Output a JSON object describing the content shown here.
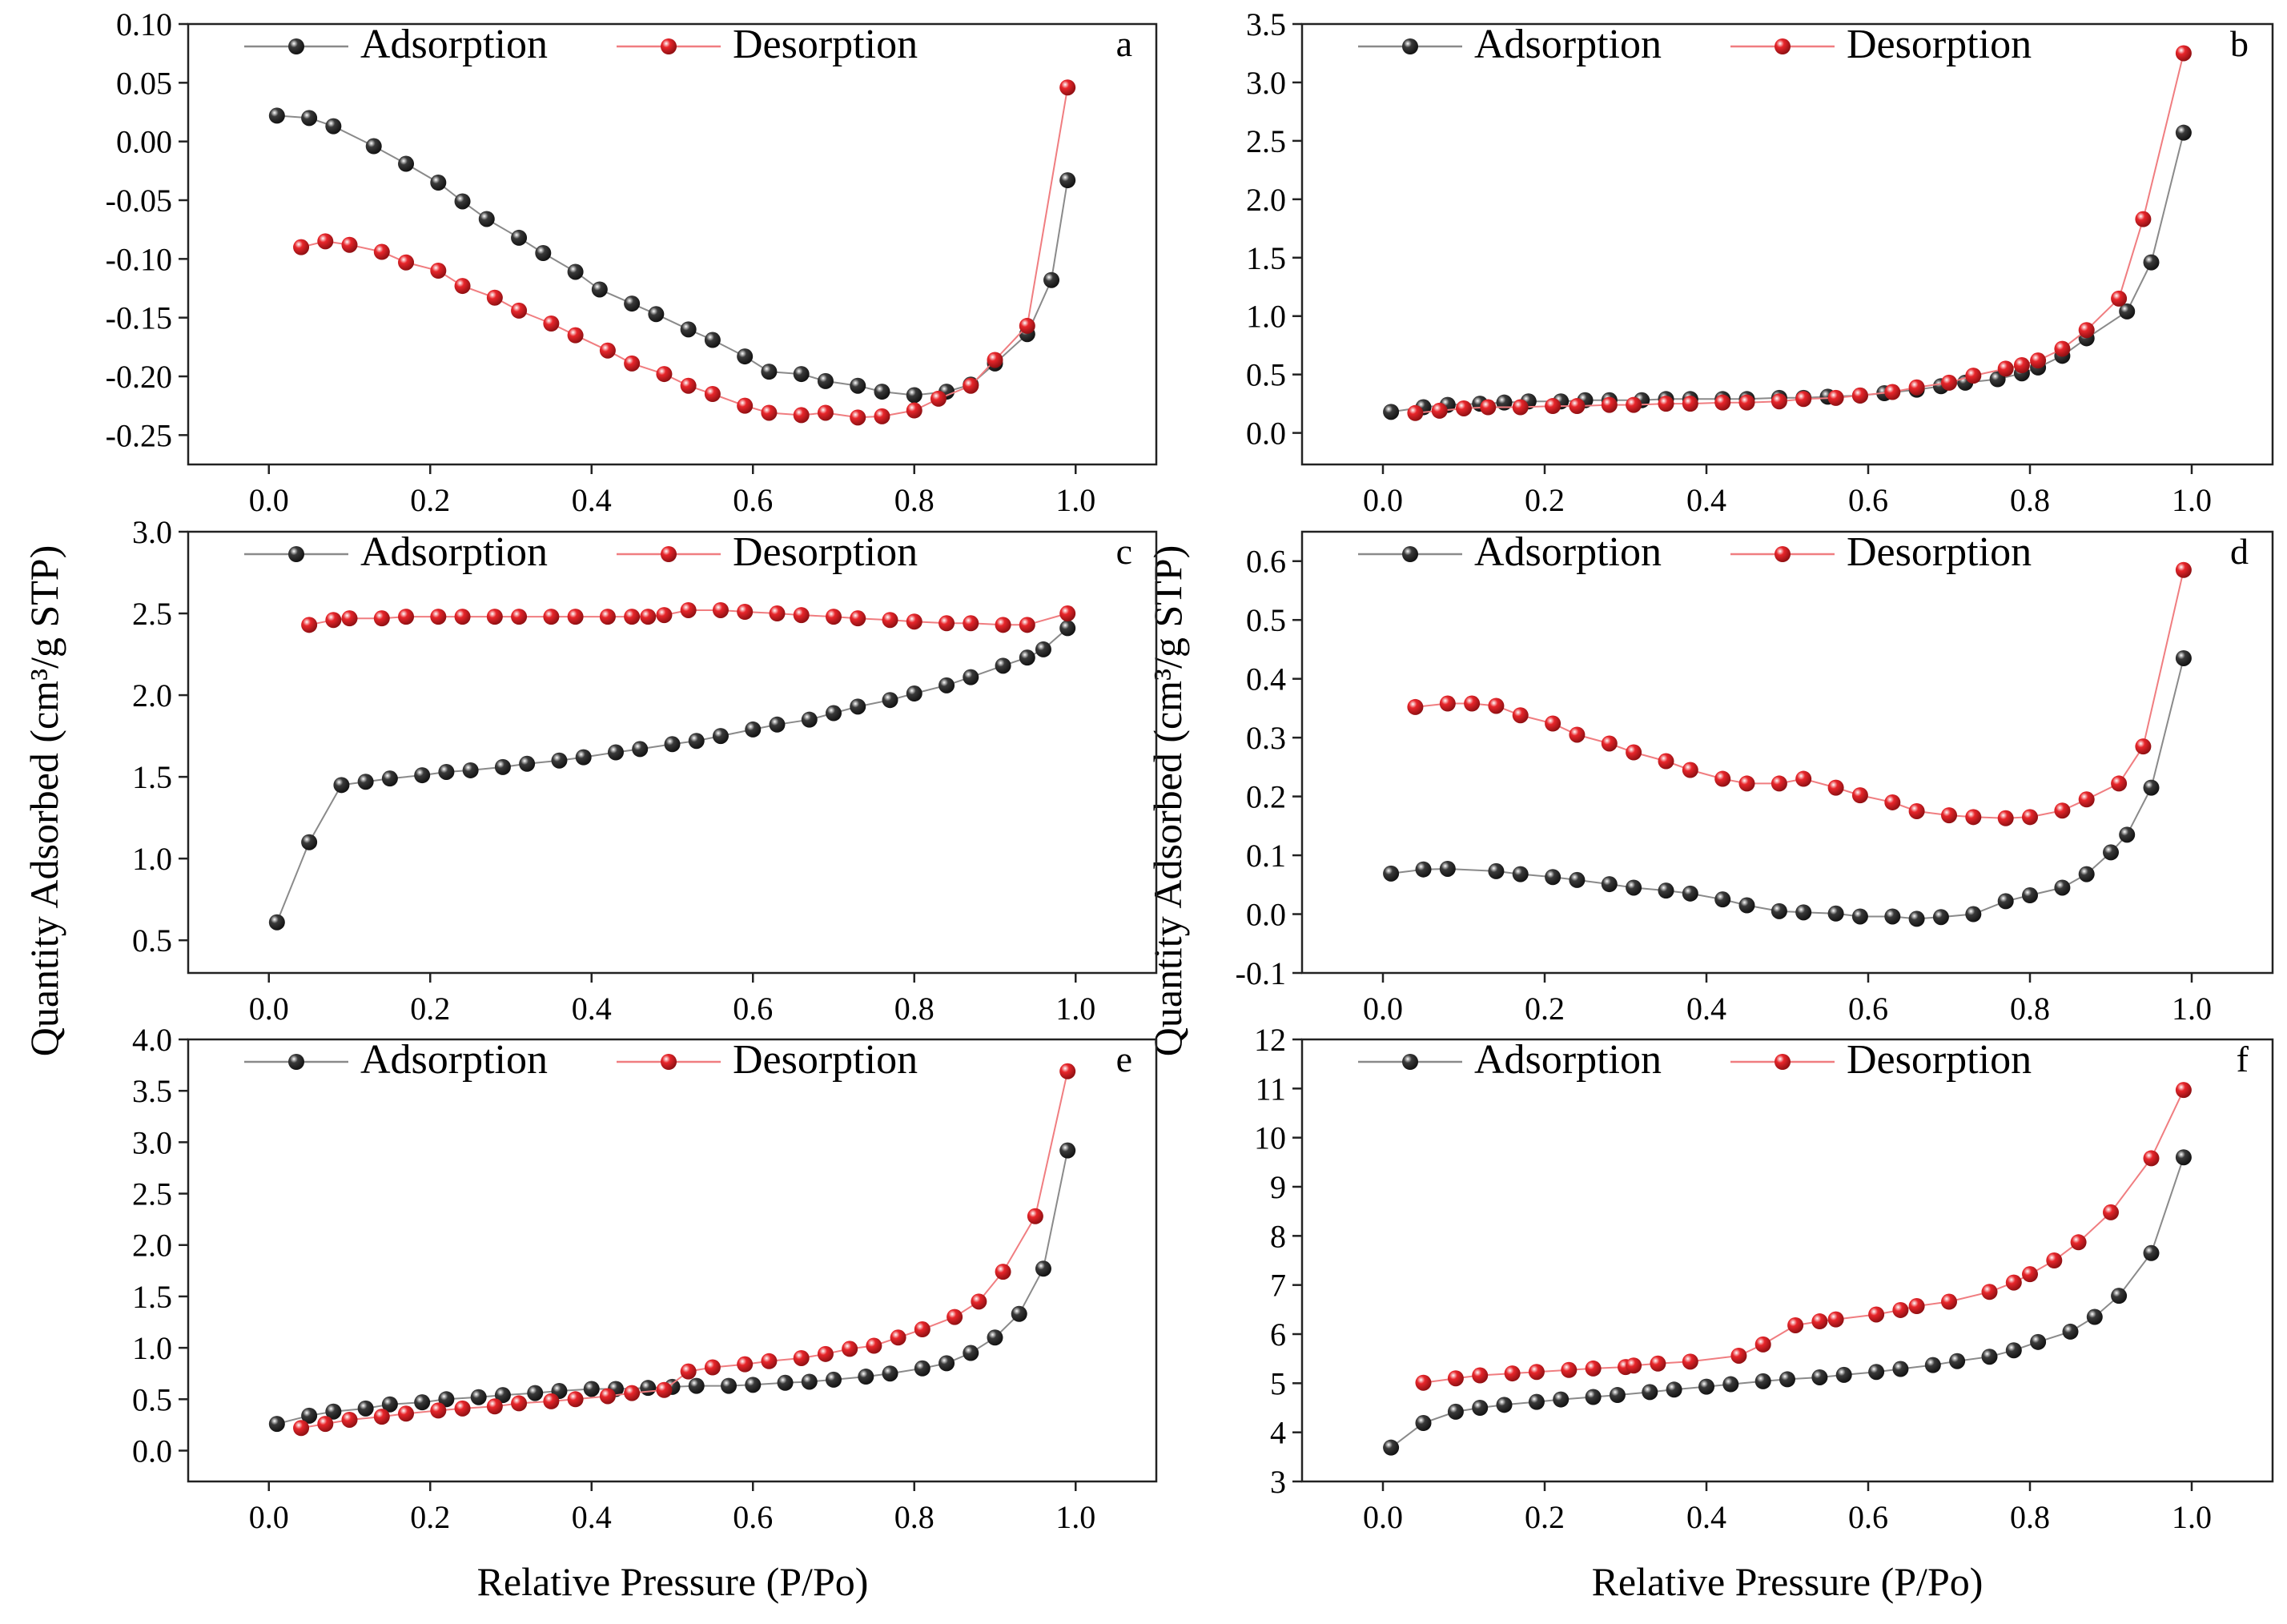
{
  "figure": {
    "ylabel": "Quantity Adsorbed (cm³/g STP)",
    "xlabel": "Relative Pressure (P/Po)"
  },
  "series_style": {
    "adsorption_color": "#3a3a3a",
    "desorption_color": "#e8262b"
  },
  "chart_data": [
    {
      "type": "line",
      "panel_label": "a",
      "xlim": [
        -0.1,
        1.1
      ],
      "ylim": [
        -0.275,
        0.1
      ],
      "xticks": [
        "0.0",
        "0.2",
        "0.4",
        "0.6",
        "0.8",
        "1.0"
      ],
      "yticks": [
        "0.10",
        "0.05",
        "0.00",
        "-0.05",
        "-0.10",
        "-0.15",
        "-0.20",
        "-0.25"
      ],
      "series": [
        {
          "name": "Adsorption",
          "x": [
            0.01,
            0.05,
            0.08,
            0.13,
            0.17,
            0.21,
            0.24,
            0.27,
            0.31,
            0.34,
            0.38,
            0.41,
            0.45,
            0.48,
            0.52,
            0.55,
            0.59,
            0.62,
            0.66,
            0.69,
            0.73,
            0.76,
            0.8,
            0.84,
            0.87,
            0.9,
            0.94,
            0.97,
            0.99
          ],
          "y": [
            0.022,
            0.02,
            0.013,
            -0.004,
            -0.019,
            -0.035,
            -0.051,
            -0.066,
            -0.082,
            -0.095,
            -0.111,
            -0.126,
            -0.138,
            -0.147,
            -0.16,
            -0.169,
            -0.183,
            -0.196,
            -0.198,
            -0.204,
            -0.208,
            -0.213,
            -0.216,
            -0.213,
            -0.207,
            -0.189,
            -0.164,
            -0.118,
            -0.033
          ]
        },
        {
          "name": "Desorption",
          "x": [
            0.04,
            0.07,
            0.1,
            0.14,
            0.17,
            0.21,
            0.24,
            0.28,
            0.31,
            0.35,
            0.38,
            0.42,
            0.45,
            0.49,
            0.52,
            0.55,
            0.59,
            0.62,
            0.66,
            0.69,
            0.73,
            0.76,
            0.8,
            0.83,
            0.87,
            0.9,
            0.94,
            0.99
          ],
          "y": [
            -0.09,
            -0.085,
            -0.088,
            -0.094,
            -0.103,
            -0.11,
            -0.123,
            -0.133,
            -0.144,
            -0.155,
            -0.165,
            -0.178,
            -0.189,
            -0.198,
            -0.208,
            -0.215,
            -0.225,
            -0.231,
            -0.233,
            -0.231,
            -0.235,
            -0.234,
            -0.229,
            -0.219,
            -0.208,
            -0.186,
            -0.157,
            0.046
          ]
        }
      ]
    },
    {
      "type": "line",
      "panel_label": "b",
      "xlim": [
        -0.1,
        1.1
      ],
      "ylim": [
        -0.27,
        3.5
      ],
      "xticks": [
        "0.0",
        "0.2",
        "0.4",
        "0.6",
        "0.8",
        "1.0"
      ],
      "yticks": [
        "3.5",
        "3.0",
        "2.5",
        "2.0",
        "1.5",
        "1.0",
        "0.5",
        "0.0"
      ],
      "series": [
        {
          "name": "Adsorption",
          "x": [
            0.01,
            0.05,
            0.08,
            0.12,
            0.15,
            0.18,
            0.22,
            0.25,
            0.28,
            0.32,
            0.35,
            0.38,
            0.42,
            0.45,
            0.49,
            0.52,
            0.55,
            0.59,
            0.62,
            0.66,
            0.69,
            0.72,
            0.76,
            0.79,
            0.81,
            0.84,
            0.87,
            0.92,
            0.95,
            0.99
          ],
          "y": [
            0.18,
            0.22,
            0.24,
            0.25,
            0.26,
            0.27,
            0.27,
            0.28,
            0.28,
            0.28,
            0.29,
            0.29,
            0.29,
            0.29,
            0.3,
            0.3,
            0.31,
            0.32,
            0.34,
            0.37,
            0.4,
            0.43,
            0.46,
            0.51,
            0.56,
            0.66,
            0.81,
            1.04,
            1.46,
            2.57
          ]
        },
        {
          "name": "Desorption",
          "x": [
            0.04,
            0.07,
            0.1,
            0.13,
            0.17,
            0.21,
            0.24,
            0.28,
            0.31,
            0.35,
            0.38,
            0.42,
            0.45,
            0.49,
            0.52,
            0.56,
            0.59,
            0.63,
            0.66,
            0.7,
            0.73,
            0.77,
            0.79,
            0.81,
            0.84,
            0.87,
            0.91,
            0.94,
            0.99
          ],
          "y": [
            0.17,
            0.19,
            0.21,
            0.22,
            0.22,
            0.23,
            0.23,
            0.24,
            0.24,
            0.25,
            0.25,
            0.26,
            0.26,
            0.27,
            0.29,
            0.3,
            0.32,
            0.35,
            0.39,
            0.43,
            0.49,
            0.55,
            0.58,
            0.62,
            0.72,
            0.88,
            1.15,
            1.83,
            3.25
          ]
        }
      ]
    },
    {
      "type": "line",
      "panel_label": "c",
      "xlim": [
        -0.1,
        1.1
      ],
      "ylim": [
        0.3,
        3.0
      ],
      "xticks": [
        "0.0",
        "0.2",
        "0.4",
        "0.6",
        "0.8",
        "1.0"
      ],
      "yticks": [
        "3.0",
        "2.5",
        "2.0",
        "1.5",
        "1.0",
        "0.5"
      ],
      "series": [
        {
          "name": "Adsorption",
          "x": [
            0.01,
            0.05,
            0.09,
            0.12,
            0.15,
            0.19,
            0.22,
            0.25,
            0.29,
            0.32,
            0.36,
            0.39,
            0.43,
            0.46,
            0.5,
            0.53,
            0.56,
            0.6,
            0.63,
            0.67,
            0.7,
            0.73,
            0.77,
            0.8,
            0.84,
            0.87,
            0.91,
            0.94,
            0.96,
            0.99
          ],
          "y": [
            0.61,
            1.1,
            1.45,
            1.47,
            1.49,
            1.51,
            1.53,
            1.54,
            1.56,
            1.58,
            1.6,
            1.62,
            1.65,
            1.67,
            1.7,
            1.72,
            1.75,
            1.79,
            1.82,
            1.85,
            1.89,
            1.93,
            1.97,
            2.01,
            2.06,
            2.11,
            2.18,
            2.23,
            2.28,
            2.41
          ]
        },
        {
          "name": "Desorption",
          "x": [
            0.05,
            0.08,
            0.1,
            0.14,
            0.17,
            0.21,
            0.24,
            0.28,
            0.31,
            0.35,
            0.38,
            0.42,
            0.45,
            0.47,
            0.49,
            0.52,
            0.56,
            0.59,
            0.63,
            0.66,
            0.7,
            0.73,
            0.77,
            0.8,
            0.84,
            0.87,
            0.91,
            0.94,
            0.99
          ],
          "y": [
            2.43,
            2.46,
            2.47,
            2.47,
            2.48,
            2.48,
            2.48,
            2.48,
            2.48,
            2.48,
            2.48,
            2.48,
            2.48,
            2.48,
            2.49,
            2.52,
            2.52,
            2.51,
            2.5,
            2.49,
            2.48,
            2.47,
            2.46,
            2.45,
            2.44,
            2.44,
            2.43,
            2.43,
            2.5
          ]
        }
      ]
    },
    {
      "type": "line",
      "panel_label": "d",
      "xlim": [
        -0.1,
        1.1
      ],
      "ylim": [
        -0.1,
        0.65
      ],
      "xticks": [
        "0.0",
        "0.2",
        "0.4",
        "0.6",
        "0.8",
        "1.0"
      ],
      "yticks": [
        "0.6",
        "0.5",
        "0.4",
        "0.3",
        "0.2",
        "0.1",
        "0.0",
        "-0.1"
      ],
      "series": [
        {
          "name": "Adsorption",
          "x": [
            0.01,
            0.05,
            0.08,
            0.14,
            0.17,
            0.21,
            0.24,
            0.28,
            0.31,
            0.35,
            0.38,
            0.42,
            0.45,
            0.49,
            0.52,
            0.56,
            0.59,
            0.63,
            0.66,
            0.69,
            0.73,
            0.77,
            0.8,
            0.84,
            0.87,
            0.9,
            0.92,
            0.95,
            0.99
          ],
          "y": [
            0.069,
            0.076,
            0.077,
            0.073,
            0.068,
            0.063,
            0.058,
            0.051,
            0.045,
            0.04,
            0.035,
            0.025,
            0.015,
            0.005,
            0.003,
            0.001,
            -0.004,
            -0.004,
            -0.008,
            -0.005,
            0.0,
            0.022,
            0.032,
            0.045,
            0.068,
            0.105,
            0.135,
            0.215,
            0.435
          ]
        },
        {
          "name": "Desorption",
          "x": [
            0.04,
            0.08,
            0.11,
            0.14,
            0.17,
            0.21,
            0.24,
            0.28,
            0.31,
            0.35,
            0.38,
            0.42,
            0.45,
            0.49,
            0.52,
            0.56,
            0.59,
            0.63,
            0.66,
            0.7,
            0.73,
            0.77,
            0.8,
            0.84,
            0.87,
            0.91,
            0.94,
            0.99
          ],
          "y": [
            0.352,
            0.358,
            0.358,
            0.354,
            0.338,
            0.324,
            0.305,
            0.29,
            0.275,
            0.26,
            0.245,
            0.23,
            0.222,
            0.222,
            0.23,
            0.215,
            0.202,
            0.19,
            0.175,
            0.168,
            0.165,
            0.163,
            0.165,
            0.176,
            0.195,
            0.222,
            0.285,
            0.585
          ]
        }
      ]
    },
    {
      "type": "line",
      "panel_label": "e",
      "xlim": [
        -0.1,
        1.1
      ],
      "ylim": [
        -0.3,
        4.0
      ],
      "xticks": [
        "0.0",
        "0.2",
        "0.4",
        "0.6",
        "0.8",
        "1.0"
      ],
      "yticks": [
        "4.0",
        "3.5",
        "3.0",
        "2.5",
        "2.0",
        "1.5",
        "1.0",
        "0.5",
        "0.0"
      ],
      "series": [
        {
          "name": "Adsorption",
          "x": [
            0.01,
            0.05,
            0.08,
            0.12,
            0.15,
            0.19,
            0.22,
            0.26,
            0.29,
            0.33,
            0.36,
            0.4,
            0.43,
            0.47,
            0.5,
            0.53,
            0.57,
            0.6,
            0.64,
            0.67,
            0.7,
            0.74,
            0.77,
            0.81,
            0.84,
            0.87,
            0.9,
            0.93,
            0.96,
            0.99
          ],
          "y": [
            0.26,
            0.34,
            0.38,
            0.41,
            0.45,
            0.47,
            0.5,
            0.52,
            0.54,
            0.56,
            0.58,
            0.6,
            0.6,
            0.61,
            0.62,
            0.63,
            0.63,
            0.64,
            0.66,
            0.67,
            0.69,
            0.72,
            0.75,
            0.8,
            0.85,
            0.95,
            1.1,
            1.33,
            1.77,
            2.92
          ]
        },
        {
          "name": "Desorption",
          "x": [
            0.04,
            0.07,
            0.1,
            0.14,
            0.17,
            0.21,
            0.24,
            0.28,
            0.31,
            0.35,
            0.38,
            0.42,
            0.45,
            0.49,
            0.52,
            0.55,
            0.59,
            0.62,
            0.66,
            0.69,
            0.72,
            0.75,
            0.78,
            0.81,
            0.85,
            0.88,
            0.91,
            0.95,
            0.99
          ],
          "y": [
            0.22,
            0.26,
            0.3,
            0.33,
            0.36,
            0.39,
            0.41,
            0.43,
            0.46,
            0.48,
            0.5,
            0.53,
            0.56,
            0.59,
            0.77,
            0.81,
            0.84,
            0.87,
            0.9,
            0.94,
            0.99,
            1.02,
            1.1,
            1.18,
            1.3,
            1.45,
            1.74,
            2.28,
            3.69
          ]
        }
      ]
    },
    {
      "type": "line",
      "panel_label": "f",
      "xlim": [
        -0.1,
        1.1
      ],
      "ylim": [
        3.0,
        12.0
      ],
      "xticks": [
        "0.0",
        "0.2",
        "0.4",
        "0.6",
        "0.8",
        "1.0"
      ],
      "yticks": [
        "12",
        "11",
        "10",
        "9",
        "8",
        "7",
        "6",
        "5",
        "4",
        "3"
      ],
      "series": [
        {
          "name": "Adsorption",
          "x": [
            0.01,
            0.05,
            0.09,
            0.12,
            0.15,
            0.19,
            0.22,
            0.26,
            0.29,
            0.33,
            0.36,
            0.4,
            0.43,
            0.47,
            0.5,
            0.54,
            0.57,
            0.61,
            0.64,
            0.68,
            0.71,
            0.75,
            0.78,
            0.81,
            0.85,
            0.88,
            0.91,
            0.95,
            0.99
          ],
          "y": [
            3.69,
            4.19,
            4.42,
            4.5,
            4.56,
            4.62,
            4.67,
            4.72,
            4.76,
            4.82,
            4.87,
            4.93,
            4.98,
            5.04,
            5.08,
            5.12,
            5.17,
            5.23,
            5.29,
            5.37,
            5.45,
            5.54,
            5.67,
            5.84,
            6.05,
            6.35,
            6.78,
            7.65,
            9.6
          ]
        },
        {
          "name": "Desorption",
          "x": [
            0.05,
            0.09,
            0.12,
            0.16,
            0.19,
            0.23,
            0.26,
            0.3,
            0.31,
            0.34,
            0.38,
            0.44,
            0.47,
            0.51,
            0.54,
            0.56,
            0.61,
            0.64,
            0.66,
            0.7,
            0.75,
            0.78,
            0.8,
            0.83,
            0.86,
            0.9,
            0.95,
            0.99
          ],
          "y": [
            5.01,
            5.1,
            5.16,
            5.2,
            5.23,
            5.27,
            5.3,
            5.33,
            5.36,
            5.4,
            5.44,
            5.56,
            5.79,
            6.18,
            6.26,
            6.3,
            6.4,
            6.49,
            6.57,
            6.66,
            6.86,
            7.05,
            7.22,
            7.5,
            7.87,
            8.48,
            9.58,
            10.97
          ]
        }
      ]
    }
  ]
}
